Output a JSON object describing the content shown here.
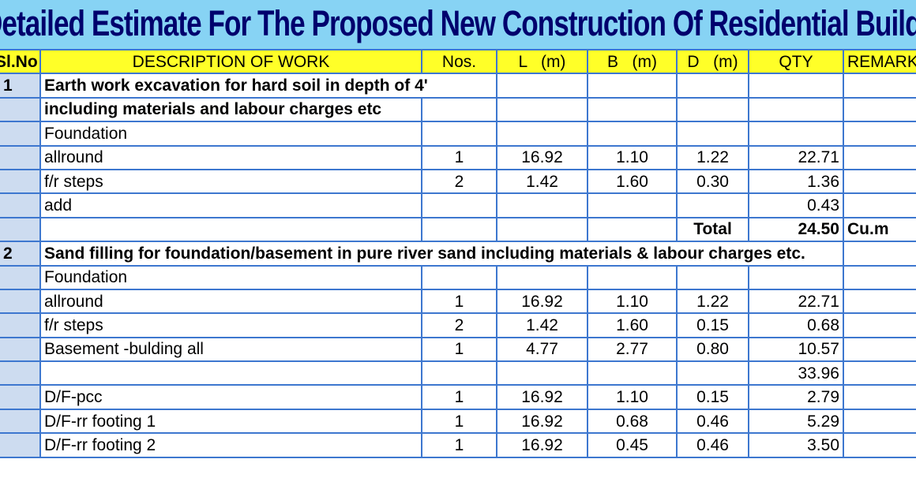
{
  "title": "Detailed Estimate For The Proposed New Construction Of Residential Building",
  "headers": {
    "sno": "Sl.No",
    "description": "DESCRIPTION OF WORK",
    "nos": "Nos.",
    "l": "L   (m)",
    "b": "B   (m)",
    "d": "D   (m)",
    "qty": "QTY",
    "remarks": "REMARKS"
  },
  "rows": [
    {
      "sno": "1",
      "desc": "Earth work excavation for hard soil in depth of 4'",
      "nos": "",
      "l": "",
      "b": "",
      "d": "",
      "qty": "",
      "remarks": ""
    },
    {
      "sno": "",
      "desc": "including materials and labour  charges etc",
      "nos": "",
      "l": "",
      "b": "",
      "d": "",
      "qty": "",
      "remarks": ""
    },
    {
      "sno": "",
      "desc": "Foundation",
      "nos": "",
      "l": "",
      "b": "",
      "d": "",
      "qty": "",
      "remarks": ""
    },
    {
      "sno": "",
      "desc": "allround",
      "nos": "1",
      "l": "16.92",
      "b": "1.10",
      "d": "1.22",
      "qty": "22.71",
      "remarks": ""
    },
    {
      "sno": "",
      "desc": "f/r steps",
      "nos": "2",
      "l": "1.42",
      "b": "1.60",
      "d": "0.30",
      "qty": "1.36",
      "remarks": ""
    },
    {
      "sno": "",
      "desc": "add",
      "nos": "",
      "l": "",
      "b": "",
      "d": "",
      "qty": "0.43",
      "remarks": ""
    },
    {
      "sno": "",
      "desc": "",
      "nos": "",
      "l": "",
      "b": "",
      "d": "Total",
      "qty": "24.50",
      "remarks": "Cu.m"
    },
    {
      "sno": "2",
      "desc": "Sand filling for foundation/basement in pure river sand including materials & labour charges etc.",
      "nos": "",
      "l": "",
      "b": "",
      "d": "",
      "qty": "",
      "remarks": ""
    },
    {
      "sno": "",
      "desc": "Foundation",
      "nos": "",
      "l": "",
      "b": "",
      "d": "",
      "qty": "",
      "remarks": ""
    },
    {
      "sno": "",
      "desc": "allround",
      "nos": "1",
      "l": "16.92",
      "b": "1.10",
      "d": "1.22",
      "qty": "22.71",
      "remarks": ""
    },
    {
      "sno": "",
      "desc": "f/r steps",
      "nos": "2",
      "l": "1.42",
      "b": "1.60",
      "d": "0.15",
      "qty": "0.68",
      "remarks": ""
    },
    {
      "sno": "",
      "desc": "Basement -bulding all",
      "nos": "1",
      "l": "4.77",
      "b": "2.77",
      "d": "0.80",
      "qty": "10.57",
      "remarks": ""
    },
    {
      "sno": "",
      "desc": "",
      "nos": "",
      "l": "",
      "b": "",
      "d": "",
      "qty": "33.96",
      "remarks": ""
    },
    {
      "sno": "",
      "desc": "D/F-pcc",
      "nos": "1",
      "l": "16.92",
      "b": "1.10",
      "d": "0.15",
      "qty": "2.79",
      "remarks": ""
    },
    {
      "sno": "",
      "desc": "D/F-rr footing 1",
      "nos": "1",
      "l": "16.92",
      "b": "0.68",
      "d": "0.46",
      "qty": "5.29",
      "remarks": ""
    },
    {
      "sno": "",
      "desc": "D/F-rr footing 2",
      "nos": "1",
      "l": "16.92",
      "b": "0.45",
      "d": "0.46",
      "qty": "3.50",
      "remarks": ""
    }
  ]
}
